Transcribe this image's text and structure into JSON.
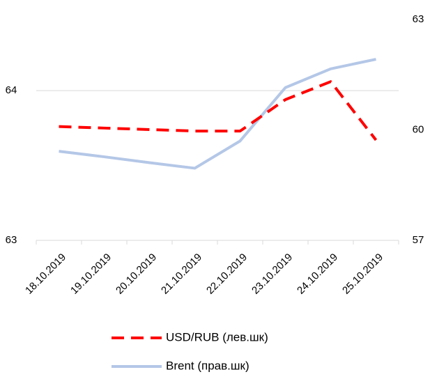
{
  "chart_data": {
    "type": "line",
    "categories": [
      "18.10.2019",
      "19.10.2019",
      "20.10.2019",
      "21.10.2019",
      "22.10.2019",
      "23.10.2019",
      "24.10.2019",
      "25.10.2019"
    ],
    "series": [
      {
        "name": "USD/RUB (лев.шк)",
        "color": "#ff0000",
        "dash": true,
        "values": [
          63.76,
          63.75,
          63.74,
          63.73,
          63.73,
          63.94,
          64.06,
          63.67
        ]
      },
      {
        "name": "Brent (прав.шк)",
        "color": "#b4c7e7",
        "axis": "y2",
        "values": [
          59.42,
          59.27,
          59.11,
          58.96,
          59.7,
          61.15,
          61.66,
          61.92
        ]
      }
    ],
    "ylim": [
      63,
      64.475
    ],
    "yticks": [
      63,
      64
    ],
    "y2lim": [
      57,
      63
    ],
    "y2ticks": [
      57,
      60,
      63
    ],
    "grid": true,
    "legend": "bottom"
  }
}
